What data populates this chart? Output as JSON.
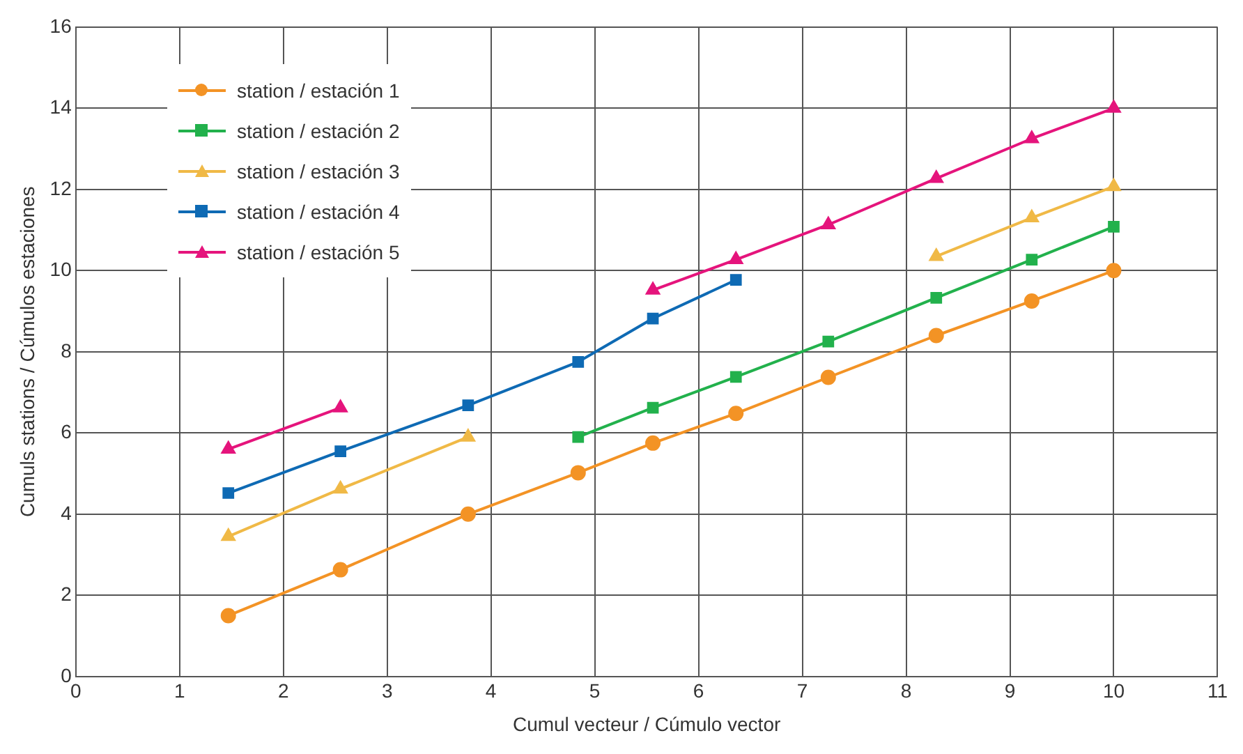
{
  "chart_data": {
    "type": "line",
    "xlabel": "Cumul vecteur / Cúmulo vector",
    "ylabel": "Cumuls stations / Cúmulos estaciones",
    "x": [
      1.47,
      2.55,
      3.78,
      4.84,
      5.56,
      6.36,
      7.25,
      8.29,
      9.21,
      10
    ],
    "series": [
      {
        "name": "station / estación 1",
        "color": "#f39325",
        "marker": "circle",
        "values": [
          1.5,
          2.63,
          4.0,
          5.02,
          5.75,
          6.48,
          7.37,
          8.4,
          9.25,
          10.0
        ]
      },
      {
        "name": "station / estación 2",
        "color": "#22b14c",
        "marker": "square",
        "values": [
          null,
          null,
          null,
          5.9,
          6.62,
          7.38,
          8.25,
          9.33,
          10.27,
          11.08
        ]
      },
      {
        "name": "station / estación 3",
        "color": "#f0b946",
        "marker": "triangle",
        "values": [
          3.45,
          4.62,
          5.9,
          null,
          null,
          null,
          null,
          10.35,
          11.3,
          12.07
        ]
      },
      {
        "name": "station / estación 4",
        "color": "#0e6ab4",
        "marker": "square",
        "values": [
          4.52,
          5.55,
          6.68,
          7.75,
          8.82,
          9.77,
          null,
          null,
          null,
          null
        ]
      },
      {
        "name": "station / estación 5",
        "color": "#e5147c",
        "marker": "triangle",
        "values": [
          5.6,
          6.62,
          null,
          null,
          9.52,
          10.27,
          11.13,
          12.27,
          13.25,
          14.0
        ]
      }
    ],
    "xlim": [
      0,
      11
    ],
    "xticks": [
      0,
      1,
      2,
      3,
      4,
      5,
      6,
      7,
      8,
      9,
      10,
      11
    ],
    "ylim": [
      0,
      16
    ],
    "yticks": [
      0,
      2,
      4,
      6,
      8,
      10,
      12,
      14,
      16
    ],
    "grid": true,
    "legend": "top left",
    "line_style": "solid"
  }
}
